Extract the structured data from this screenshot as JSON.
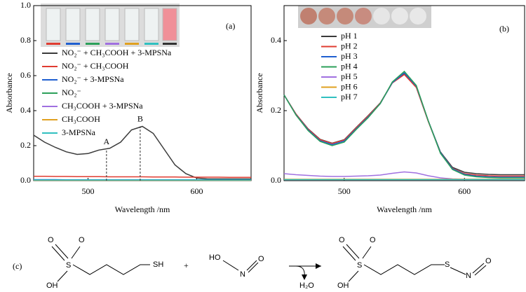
{
  "chart_data": [
    {
      "type": "line",
      "panel_label": "(a)",
      "x_label": "Wavelength /nm",
      "y_label": "Absorbance",
      "xlim": [
        450,
        650
      ],
      "xticks": [
        500,
        600
      ],
      "ylim": [
        0,
        1.0
      ],
      "yticks": [
        {
          "value": 0,
          "label": "0.0"
        },
        0.2,
        0.4,
        0.6,
        0.8,
        {
          "value": 1.0,
          "label": "1.0"
        }
      ],
      "x": [
        450,
        460,
        470,
        480,
        490,
        500,
        510,
        520,
        530,
        540,
        550,
        560,
        570,
        580,
        590,
        600,
        610,
        620,
        630,
        640,
        650
      ],
      "series": [
        {
          "name": "NO₂⁻ + CH₃COOH + 3-MPSNa",
          "color": "#3a3a3a",
          "values": [
            0.26,
            0.22,
            0.19,
            0.165,
            0.15,
            0.155,
            0.175,
            0.185,
            0.22,
            0.29,
            0.31,
            0.27,
            0.18,
            0.09,
            0.04,
            0.015,
            0.01,
            0.01,
            0.01,
            0.01,
            0.01
          ]
        },
        {
          "name": "NO₂⁻ + CH₃COOH",
          "color": "#e03c31",
          "values": [
            0.025,
            0.025,
            0.024,
            0.024,
            0.023,
            0.023,
            0.023,
            0.022,
            0.022,
            0.022,
            0.022,
            0.021,
            0.021,
            0.021,
            0.02,
            0.02,
            0.02,
            0.02,
            0.019,
            0.019,
            0.019
          ]
        },
        {
          "name": "NO₂⁻ + 3-MPSNa",
          "color": "#1f5fd0",
          "values": [
            0.006,
            0.006,
            0.006,
            0.005,
            0.005,
            0.005,
            0.005,
            0.005,
            0.005,
            0.005,
            0.005,
            0.005,
            0.005,
            0.005,
            0.005,
            0.005,
            0.005,
            0.005,
            0.005,
            0.005,
            0.005
          ]
        },
        {
          "name": "NO₂⁻",
          "color": "#2ca05a",
          "values": [
            0,
            0,
            0,
            0,
            0,
            0,
            0,
            0,
            0,
            0,
            0,
            0,
            0,
            0,
            0,
            0,
            0,
            0,
            0,
            0,
            0
          ]
        },
        {
          "name": "CH₃COOH + 3-MPSNa",
          "color": "#a070e0",
          "values": [
            0.001,
            0.001,
            0.001,
            0.001,
            0.001,
            0.001,
            0.001,
            0.001,
            0.001,
            0.001,
            0.001,
            0.001,
            0.001,
            0.001,
            0.001,
            0.001,
            0.001,
            0.001,
            0.001,
            0.001,
            0.001
          ]
        },
        {
          "name": "CH₃COOH",
          "color": "#e0a020",
          "values": [
            0.002,
            0.002,
            0.002,
            0.002,
            0.002,
            0.002,
            0.002,
            0.002,
            0.002,
            0.002,
            0.002,
            0.002,
            0.002,
            0.002,
            0.002,
            0.002,
            0.002,
            0.002,
            0.002,
            0.002,
            0.002
          ]
        },
        {
          "name": "3-MPSNa",
          "color": "#30c0c0",
          "values": [
            0.004,
            0.004,
            0.004,
            0.004,
            0.004,
            0.004,
            0.004,
            0.004,
            0.004,
            0.004,
            0.004,
            0.004,
            0.004,
            0.004,
            0.004,
            0.004,
            0.004,
            0.004,
            0.004,
            0.004,
            0.004
          ]
        }
      ],
      "annotations": [
        {
          "text": "A",
          "x": 517,
          "y": 0.18
        },
        {
          "text": "B",
          "x": 548,
          "y": 0.31
        }
      ]
    },
    {
      "type": "line",
      "panel_label": "(b)",
      "x_label": "Wavelength /nm",
      "y_label": "Absorbance",
      "xlim": [
        450,
        650
      ],
      "xticks": [
        500,
        600
      ],
      "ylim": [
        0,
        0.5
      ],
      "yticks": [
        {
          "value": 0,
          "label": "0.0"
        },
        0.2,
        0.4
      ],
      "x": [
        450,
        460,
        470,
        480,
        490,
        500,
        510,
        520,
        530,
        540,
        550,
        560,
        570,
        580,
        590,
        600,
        610,
        620,
        630,
        640,
        650
      ],
      "series": [
        {
          "name": "pH 1",
          "color": "#3a3a3a",
          "values": [
            0.245,
            0.19,
            0.148,
            0.118,
            0.107,
            0.117,
            0.152,
            0.186,
            0.222,
            0.28,
            0.305,
            0.268,
            0.17,
            0.082,
            0.038,
            0.024,
            0.02,
            0.018,
            0.017,
            0.017,
            0.017
          ]
        },
        {
          "name": "pH 2",
          "color": "#e03c31",
          "values": [
            0.245,
            0.19,
            0.147,
            0.117,
            0.106,
            0.116,
            0.151,
            0.185,
            0.221,
            0.279,
            0.303,
            0.266,
            0.168,
            0.08,
            0.035,
            0.02,
            0.016,
            0.014,
            0.013,
            0.013,
            0.013
          ]
        },
        {
          "name": "pH 3",
          "color": "#1f5fd0",
          "values": [
            0.245,
            0.188,
            0.145,
            0.114,
            0.103,
            0.113,
            0.148,
            0.182,
            0.22,
            0.28,
            0.308,
            0.27,
            0.17,
            0.08,
            0.034,
            0.018,
            0.013,
            0.011,
            0.01,
            0.01,
            0.01
          ]
        },
        {
          "name": "pH 4",
          "color": "#2ca05a",
          "values": [
            0.245,
            0.187,
            0.143,
            0.112,
            0.1,
            0.11,
            0.146,
            0.18,
            0.22,
            0.282,
            0.312,
            0.272,
            0.17,
            0.078,
            0.032,
            0.016,
            0.011,
            0.009,
            0.008,
            0.008,
            0.008
          ]
        },
        {
          "name": "pH 5",
          "color": "#a070e0",
          "values": [
            0.02,
            0.017,
            0.015,
            0.013,
            0.012,
            0.012,
            0.013,
            0.014,
            0.016,
            0.021,
            0.025,
            0.022,
            0.014,
            0.008,
            0.005,
            0.004,
            0.004,
            0.004,
            0.004,
            0.004,
            0.004
          ]
        },
        {
          "name": "pH 6",
          "color": "#e0a020",
          "values": [
            0.004,
            0.004,
            0.004,
            0.004,
            0.004,
            0.004,
            0.004,
            0.004,
            0.004,
            0.004,
            0.004,
            0.004,
            0.004,
            0.004,
            0.004,
            0.004,
            0.004,
            0.004,
            0.004,
            0.004,
            0.004
          ]
        },
        {
          "name": "pH 7",
          "color": "#30c0c0",
          "values": [
            0.003,
            0.003,
            0.003,
            0.003,
            0.003,
            0.003,
            0.003,
            0.003,
            0.003,
            0.003,
            0.003,
            0.003,
            0.003,
            0.003,
            0.003,
            0.003,
            0.003,
            0.003,
            0.003,
            0.003,
            0.003
          ]
        }
      ]
    }
  ],
  "scheme": {
    "label": "(c)",
    "plus": "+",
    "byproduct": "H₂O",
    "reactant1": [
      "O",
      "O",
      "S",
      "OH",
      "SH"
    ],
    "reactant2": [
      "HO",
      "N",
      "O"
    ],
    "product": [
      "O",
      "O",
      "S",
      "OH",
      "S",
      "N",
      "O"
    ]
  }
}
